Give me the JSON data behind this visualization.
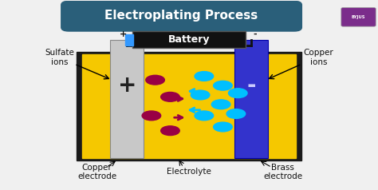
{
  "title": "Electroplating Process",
  "title_bg": "#2a5f7a",
  "title_color": "white",
  "bg_color": "#f0f0f0",
  "tank_color": "#f5c800",
  "tank_outline": "#1a1a1a",
  "copper_electrode_color": "#c8c8c8",
  "brass_electrode_color": "#3333cc",
  "battery_bg": "#111111",
  "battery_color": "white",
  "wire_color": "#111111",
  "label_sulfate": "Sulfate\nions",
  "label_copper_ions": "Copper\nions",
  "label_copper_electrode": "Copper\nelectrode",
  "label_electrolyte": "Electrolyte",
  "label_brass_electrode": "Brass\nelectrode",
  "label_battery": "Battery",
  "plus_symbol": "+",
  "minus_symbol": "-",
  "dark_red_ion_color": "#990044",
  "cyan_ion_color": "#00bfff",
  "byjus_color": "#7b2d8b",
  "cap_color": "#3399ff"
}
